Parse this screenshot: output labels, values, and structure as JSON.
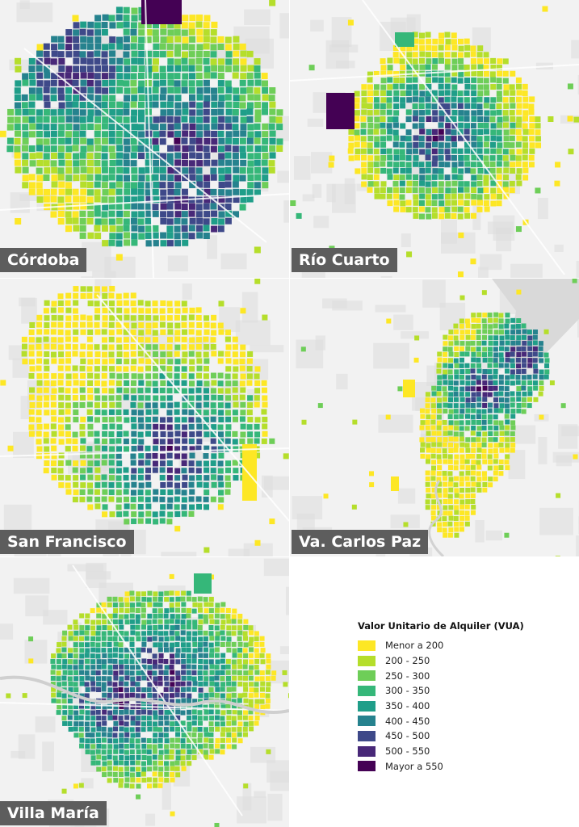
{
  "panels": [
    {
      "id": "cordoba",
      "label": "Córdoba"
    },
    {
      "id": "rio-cuarto",
      "label": "Río Cuarto"
    },
    {
      "id": "san-francisco",
      "label": "San Francisco"
    },
    {
      "id": "carlos-paz",
      "label": "Va. Carlos Paz"
    },
    {
      "id": "villa-maria",
      "label": "Villa María"
    }
  ],
  "legend": {
    "title": "Valor Unitario de Alquiler (VUA)",
    "items": [
      {
        "label": "Menor a 200",
        "color": "#fde725"
      },
      {
        "label": "200 - 250",
        "color": "#b5de2b"
      },
      {
        "label": "250 - 300",
        "color": "#6ece58"
      },
      {
        "label": "300 - 350",
        "color": "#35b779"
      },
      {
        "label": "350 - 400",
        "color": "#1f9e89"
      },
      {
        "label": "400 - 450",
        "color": "#26828e"
      },
      {
        "label": "450 - 500",
        "color": "#3e4989"
      },
      {
        "label": "500 - 550",
        "color": "#482878"
      },
      {
        "label": "Mayor a 550",
        "color": "#440154"
      }
    ]
  },
  "colors": {
    "background": "#f2f2f2",
    "water": "#d9d9d9",
    "label_bg": "#5d5d5d"
  }
}
